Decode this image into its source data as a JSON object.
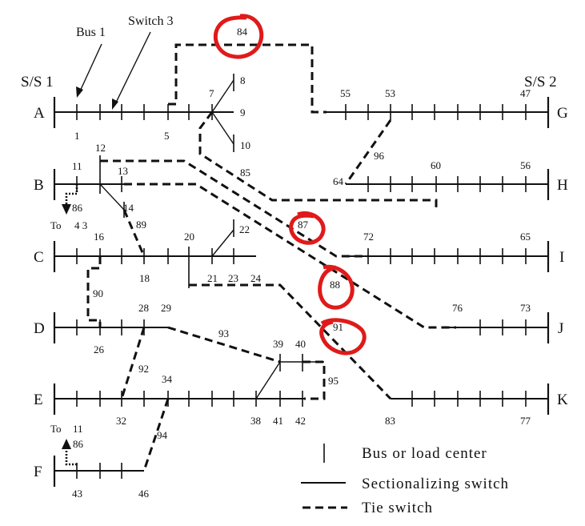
{
  "substations": {
    "left": "S/S 1",
    "right": "S/S 2"
  },
  "callouts": {
    "bus": "Bus 1",
    "switch": "Switch 3"
  },
  "feeders": [
    {
      "name": "A"
    },
    {
      "name": "B"
    },
    {
      "name": "C"
    },
    {
      "name": "D"
    },
    {
      "name": "E"
    },
    {
      "name": "F"
    },
    {
      "name": "G"
    },
    {
      "name": "H"
    },
    {
      "name": "I"
    },
    {
      "name": "J"
    },
    {
      "name": "K"
    }
  ],
  "node_labels": [
    "84",
    "7",
    "8",
    "9",
    "10",
    "1",
    "5",
    "55",
    "53",
    "47",
    "11",
    "12",
    "13",
    "86",
    "4 3",
    "To",
    "14",
    "85",
    "64",
    "60",
    "56",
    "96",
    "87",
    "89",
    "16",
    "20",
    "22",
    "21",
    "23",
    "24",
    "18",
    "72",
    "65",
    "88",
    "90",
    "28",
    "29",
    "76",
    "73",
    "26",
    "91",
    "93",
    "39",
    "40",
    "92",
    "34",
    "95",
    "32",
    "38",
    "41",
    "42",
    "83",
    "77",
    "To",
    "11",
    "86",
    "94",
    "43",
    "46"
  ],
  "legend": {
    "bus": "Bus or load center",
    "sectionalizing": "Sectionalizing switch",
    "tie": "Tie switch"
  },
  "highlighted_tie_switches": [
    "84",
    "87",
    "88",
    "91"
  ],
  "colors": {
    "line": "#111111",
    "highlight": "#e01a1a",
    "background": "#ffffff"
  }
}
